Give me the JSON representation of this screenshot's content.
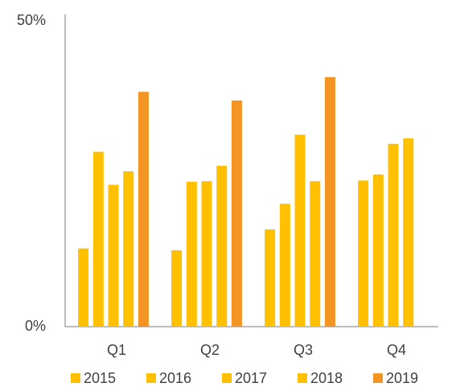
{
  "chart_data": {
    "type": "bar",
    "categories": [
      "Q1",
      "Q2",
      "Q3",
      "Q4"
    ],
    "series": [
      {
        "name": "2015",
        "color": "#ffc000",
        "values": [
          12.8,
          12.5,
          15.9,
          23.9
        ]
      },
      {
        "name": "2016",
        "color": "#ffc000",
        "values": [
          28.6,
          23.7,
          20.1,
          24.9
        ]
      },
      {
        "name": "2017",
        "color": "#ffc000",
        "values": [
          23.2,
          23.8,
          31.4,
          29.9
        ]
      },
      {
        "name": "2018",
        "color": "#ffc000",
        "values": [
          25.4,
          26.3,
          23.8,
          30.8
        ]
      },
      {
        "name": "2019",
        "color": "#f39423",
        "values": [
          38.4,
          37.0,
          40.8,
          null
        ]
      }
    ],
    "ylim": [
      0,
      50
    ],
    "yticks": [
      {
        "value": 0,
        "label": "0%"
      },
      {
        "value": 50,
        "label": "50%"
      }
    ],
    "grid": false,
    "legend": "bottom"
  }
}
